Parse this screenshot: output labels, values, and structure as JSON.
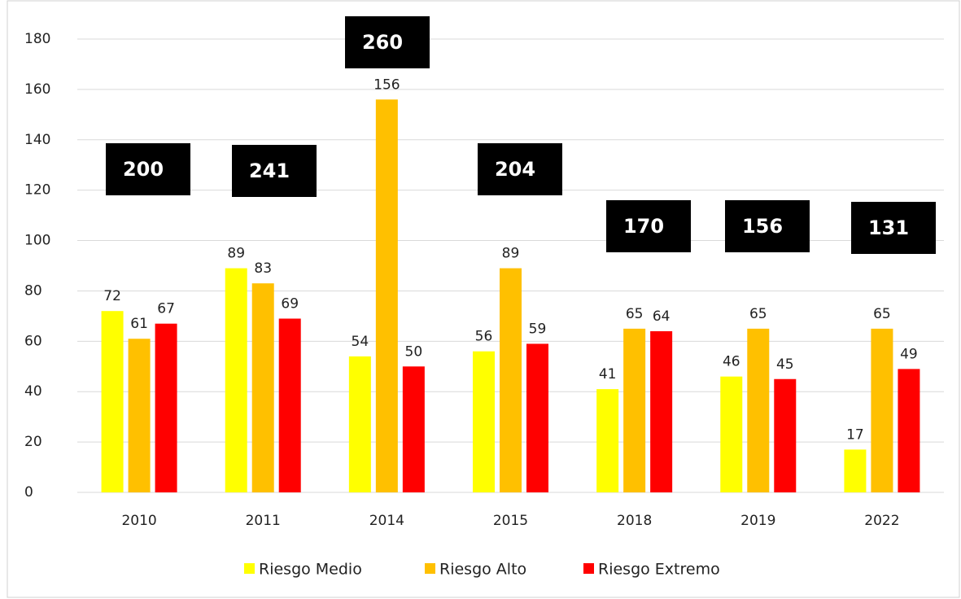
{
  "chart_data": {
    "type": "bar",
    "categories": [
      "2010",
      "2011",
      "2014",
      "2015",
      "2018",
      "2019",
      "2022"
    ],
    "series": [
      {
        "name": "Riesgo Medio",
        "color": "#ffff00",
        "values": [
          72,
          89,
          54,
          56,
          41,
          46,
          17
        ]
      },
      {
        "name": "Riesgo Alto",
        "color": "#ffc000",
        "values": [
          61,
          83,
          156,
          89,
          65,
          65,
          65
        ]
      },
      {
        "name": "Riesgo Extremo",
        "color": "#ff0000",
        "values": [
          67,
          69,
          50,
          59,
          64,
          45,
          49
        ]
      }
    ],
    "totals": [
      200,
      241,
      260,
      204,
      170,
      156,
      131
    ],
    "ylim": [
      0,
      180
    ],
    "yticks": [
      0,
      20,
      40,
      60,
      80,
      100,
      120,
      140,
      160,
      180
    ],
    "grid": true,
    "legend": "bottom"
  }
}
